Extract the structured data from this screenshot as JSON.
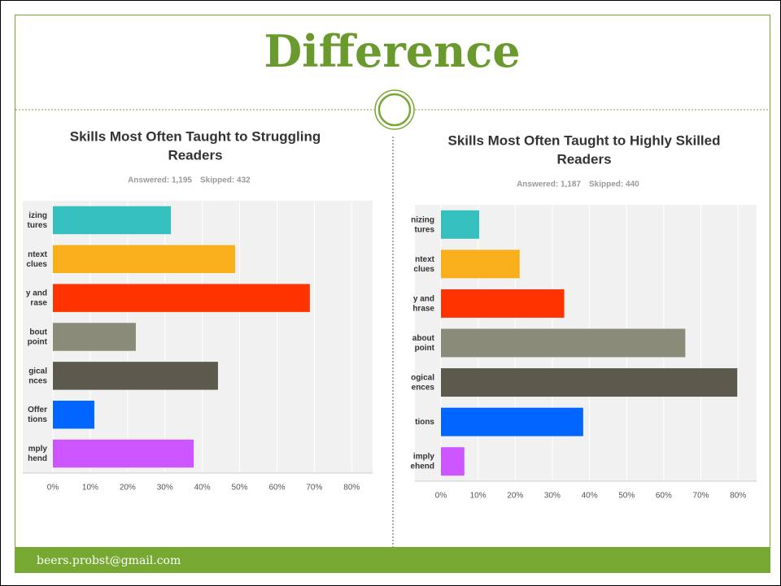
{
  "slide": {
    "title": "Difference",
    "footer": "beers.probst@gmail.com"
  },
  "chart_data": [
    {
      "type": "barh",
      "title": "Skills Most Often Taught to Struggling\nReaders",
      "answered": "Answered: 1,195",
      "skipped": "Skipped: 432",
      "categories": [
        "izing\ntures",
        "ntext\nclues",
        "y and\nrase",
        "bout\npoint",
        "gical\nnces",
        "Offer\ntions",
        "mply\nhend"
      ],
      "values": [
        31.6,
        48.8,
        68.8,
        22.2,
        44.2,
        11.1,
        37.7
      ],
      "colors": [
        "#36bfbf",
        "#f9ae1c",
        "#ff3300",
        "#8b8b7a",
        "#5b5a4c",
        "#0066ff",
        "#cc55ff"
      ],
      "xlim": [
        0,
        85.6
      ],
      "xticks": [
        {
          "value": 0,
          "label": "0%"
        },
        {
          "value": 10,
          "label": "10%"
        },
        {
          "value": 20,
          "label": "20%"
        },
        {
          "value": 30,
          "label": "30%"
        },
        {
          "value": 40,
          "label": "40%"
        },
        {
          "value": 50,
          "label": "50%"
        },
        {
          "value": 60,
          "label": "60%"
        },
        {
          "value": 70,
          "label": "70%"
        },
        {
          "value": 80,
          "label": "80%"
        }
      ],
      "grid": true
    },
    {
      "type": "barh",
      "title": "Skills Most Often Taught to Highly Skilled\nReaders",
      "answered": "Answered: 1,187",
      "skipped": "Skipped: 440",
      "categories": [
        "nizing\ntures",
        "ntext\nclues",
        "y and\nhrase",
        "about\npoint",
        "ogical\nences",
        "tions",
        "imply\nehend"
      ],
      "values": [
        10.3,
        21.2,
        33.2,
        65.8,
        79.8,
        38.3,
        6.3
      ],
      "colors": [
        "#36bfbf",
        "#f9ae1c",
        "#ff3300",
        "#8b8b7a",
        "#5b5a4c",
        "#0066ff",
        "#cc55ff"
      ],
      "xlim": [
        0,
        85
      ],
      "xticks": [
        {
          "value": 0,
          "label": "0%"
        },
        {
          "value": 10,
          "label": "10%"
        },
        {
          "value": 20,
          "label": "20%"
        },
        {
          "value": 30,
          "label": "30%"
        },
        {
          "value": 40,
          "label": "40%"
        },
        {
          "value": 50,
          "label": "50%"
        },
        {
          "value": 60,
          "label": "60%"
        },
        {
          "value": 70,
          "label": "70%"
        },
        {
          "value": 80,
          "label": "80%"
        }
      ],
      "grid": true
    }
  ]
}
